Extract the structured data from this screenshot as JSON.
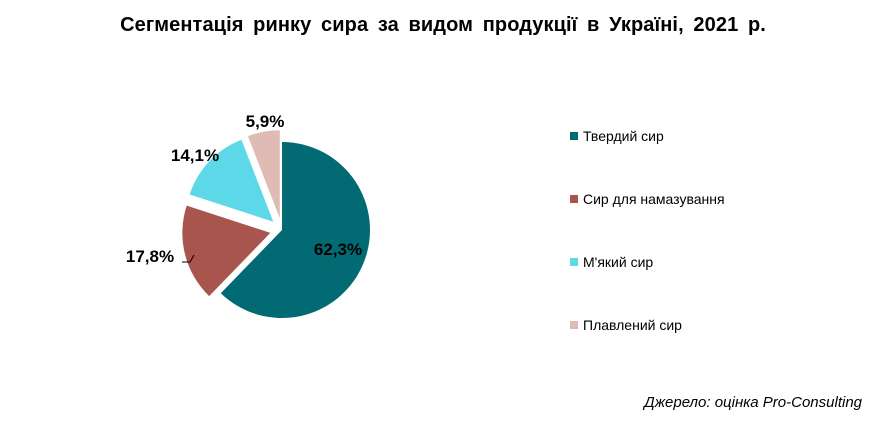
{
  "title": "Сегментація ринку сира за видом продукції в Україні, 2021 р.",
  "source": "Джерело: оцінка Pro-Consulting",
  "chart_data": {
    "type": "pie",
    "title": "Сегментація ринку сира за видом продукції в Україні, 2021 р.",
    "categories": [
      "Твердий сир",
      "Сир для намазування",
      "М'який сир",
      "Плавлений сир"
    ],
    "values": [
      62.3,
      17.8,
      14.1,
      5.9
    ],
    "value_labels": [
      "62,3%",
      "17,8%",
      "14,1%",
      "5,9%"
    ],
    "colors": [
      "#026a72",
      "#a8554d",
      "#5cd8e8",
      "#e0bab4"
    ],
    "exploded": [
      false,
      true,
      true,
      true
    ],
    "legend_position": "right"
  }
}
